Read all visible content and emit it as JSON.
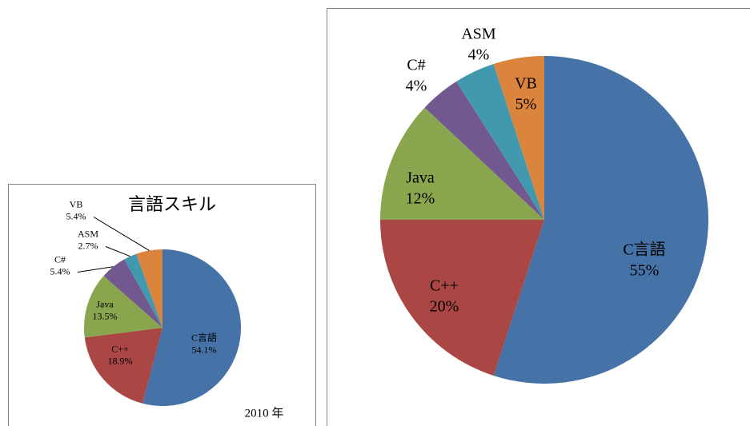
{
  "chart_data": [
    {
      "type": "pie",
      "title": "言語スキル",
      "categories": [
        "C言語",
        "C++",
        "Java",
        "C#",
        "ASM",
        "VB"
      ],
      "values": [
        54.1,
        18.9,
        13.5,
        5.4,
        2.7,
        5.4
      ],
      "value_labels": [
        "54.1%",
        "18.9%",
        "13.5%",
        "5.4%",
        "2.7%",
        "5.4%"
      ],
      "colors": [
        "#4572a7",
        "#aa4643",
        "#89a54e",
        "#71588f",
        "#4198af",
        "#db843d"
      ],
      "annotation": "2010 年"
    },
    {
      "type": "pie",
      "categories": [
        "C言語",
        "C++",
        "Java",
        "C#",
        "ASM",
        "VB"
      ],
      "values": [
        55,
        20,
        12,
        4,
        4,
        5
      ],
      "value_labels": [
        "55%",
        "20%",
        "12%",
        "4%",
        "4%",
        "5%"
      ],
      "colors": [
        "#4572a7",
        "#aa4643",
        "#89a54e",
        "#71588f",
        "#4198af",
        "#db843d"
      ]
    }
  ]
}
